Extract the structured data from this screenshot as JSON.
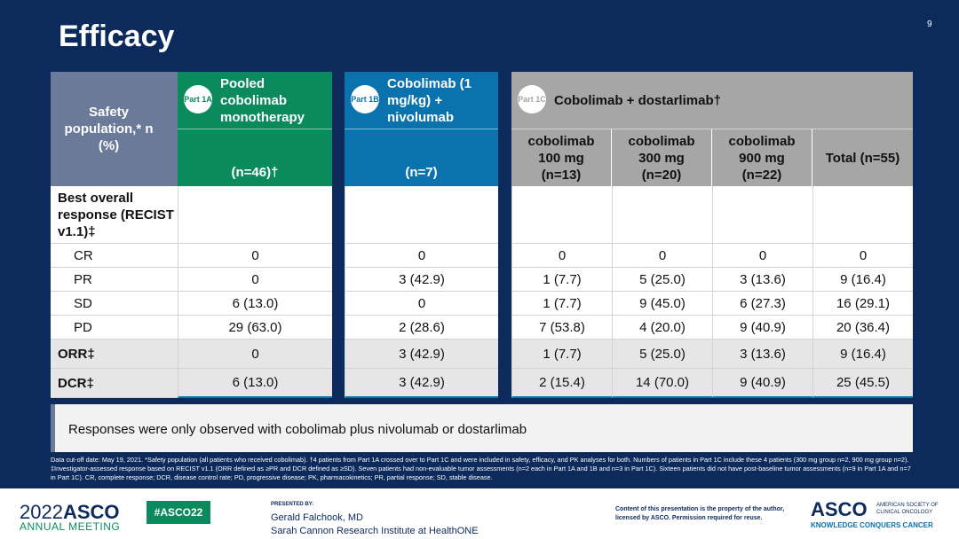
{
  "title": "Efficacy",
  "page_number": "9",
  "row_header": "Safety population,* n (%)",
  "groups": [
    {
      "part": "Part 1A",
      "title": "Pooled cobolimab monotherapy",
      "n": "(n=46)†",
      "color": "#0b8a5e"
    },
    {
      "part": "Part 1B",
      "title": "Cobolimab (1 mg/kg) + nivolumab",
      "n": "(n=7)",
      "color": "#0a72ad"
    },
    {
      "part": "Part 1C",
      "title": "Cobolimab + dostarlimab†",
      "color": "#a6a6a6"
    }
  ],
  "sub_columns": [
    "cobolimab 100 mg (n=13)",
    "cobolimab 300 mg (n=20)",
    "cobolimab 900 mg (n=22)",
    "Total (n=55)"
  ],
  "rows": [
    {
      "label": "Best overall response (RECIST v1.1)‡",
      "values": [
        "",
        "",
        "",
        "",
        "",
        ""
      ]
    },
    {
      "label": "CR",
      "values": [
        "0",
        "0",
        "0",
        "0",
        "0",
        "0"
      ]
    },
    {
      "label": "PR",
      "values": [
        "0",
        "3 (42.9)",
        "1 (7.7)",
        "5 (25.0)",
        "3 (13.6)",
        "9 (16.4)"
      ]
    },
    {
      "label": "SD",
      "values": [
        "6 (13.0)",
        "0",
        "1 (7.7)",
        "9 (45.0)",
        "6 (27.3)",
        "16 (29.1)"
      ]
    },
    {
      "label": "PD",
      "values": [
        "29 (63.0)",
        "2 (28.6)",
        "7 (53.8)",
        "4 (20.0)",
        "9 (40.9)",
        "20 (36.4)"
      ]
    },
    {
      "label": "ORR‡",
      "values": [
        "0",
        "3 (42.9)",
        "1 (7.7)",
        "5 (25.0)",
        "3 (13.6)",
        "9 (16.4)"
      ]
    },
    {
      "label": "DCR‡",
      "values": [
        "6 (13.0)",
        "3 (42.9)",
        "2 (15.4)",
        "14 (70.0)",
        "9 (40.9)",
        "25 (45.5)"
      ]
    }
  ],
  "summary": "Responses were only observed with cobolimab plus nivolumab or dostarlimab",
  "footnote": "Data cut-off date: May 19, 2021. *Safety population (all patients who received cobolimab). †4 patients from Part 1A crossed over to Part 1C and were included in safety, efficacy, and PK analyses for both. Numbers of patients in Part 1C include these 4 patients (300 mg group n=2, 900 mg group n=2). ‡Investigator-assessed response based on RECIST v1.1 (ORR defined as ≥PR and DCR defined as ≥SD). Seven patients had non-evaluable tumor assessments (n=2 each in Part 1A and 1B and n=3 in Part 1C). Sixteen patients did not have post-baseline tumor assessments (n=9 in Part 1A and n=7 in Part 1C). CR, complete response; DCR, disease control rate; PD, progressive disease; PK, pharmacokinetics; PR, partial response; SD, stable disease.",
  "footer": {
    "meeting_year": "2022",
    "meeting_brand": "ASCO",
    "meeting_sub": "ANNUAL MEETING",
    "hashtag": "#ASCO22",
    "presented_by": "PRESENTED BY:",
    "presenter": "Gerald Falchook, MD",
    "institution": "Sarah Cannon Research Institute at HealthONE",
    "copyright": "Content of this presentation is the property of the author, licensed by ASCO. Permission required for reuse.",
    "asco_logo": "ASCO",
    "asco_org": "AMERICAN SOCIETY OF CLINICAL ONCOLOGY",
    "asco_tagline": "KNOWLEDGE CONQUERS CANCER"
  }
}
